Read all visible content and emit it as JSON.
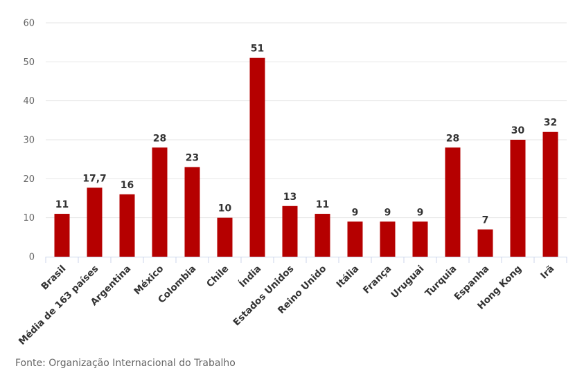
{
  "source_text": "Fonte: Organização Internacional do Trabalho",
  "colors": {
    "bar": "#b50000",
    "grid": "#e6e6e6",
    "axis": "#ccd6eb"
  },
  "chart_data": {
    "type": "bar",
    "title": "",
    "xlabel": "",
    "ylabel": "",
    "ylim": [
      0,
      60
    ],
    "yticks": [
      0,
      10,
      20,
      30,
      40,
      50,
      60
    ],
    "grid": true,
    "categories": [
      "Brasil",
      "Média de 163 países",
      "Argentina",
      "México",
      "Colombia",
      "Chile",
      "Índia",
      "Estados Unidos",
      "Reino Unido",
      "Itália",
      "França",
      "Uruguai",
      "Turquia",
      "Espanha",
      "Hong Kong",
      "Irã"
    ],
    "values": [
      11,
      17.7,
      16,
      28,
      23,
      10,
      51,
      13,
      11,
      9,
      9,
      9,
      28,
      7,
      30,
      32
    ],
    "value_labels": [
      "11",
      "17,7",
      "16",
      "28",
      "23",
      "10",
      "51",
      "13",
      "11",
      "9",
      "9",
      "9",
      "28",
      "7",
      "30",
      "32"
    ]
  }
}
